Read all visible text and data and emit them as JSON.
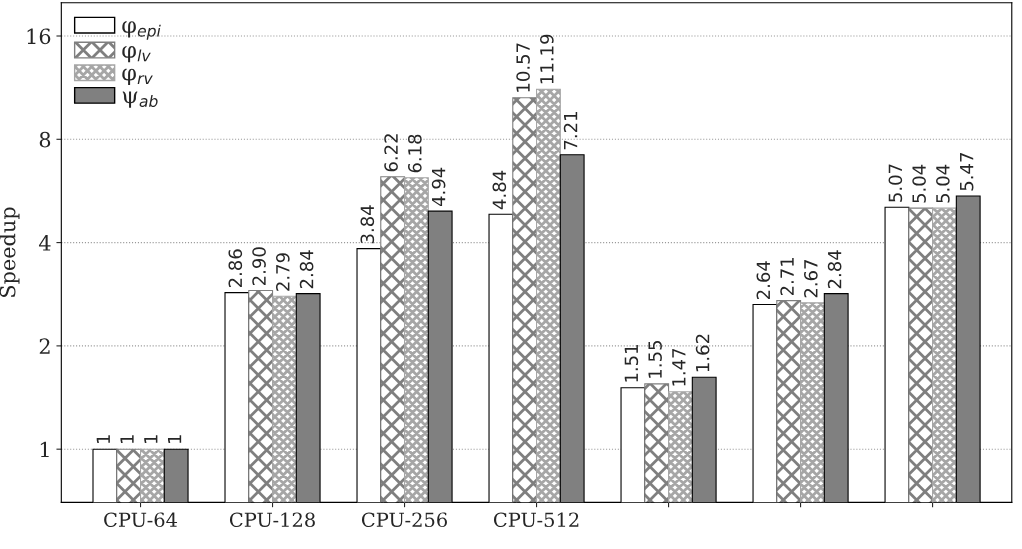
{
  "chart_data": {
    "type": "bar",
    "ylabel": "Speedup",
    "categories": [
      "CPU-64",
      "CPU-128",
      "CPU-256",
      "CPU-512",
      null,
      null,
      null
    ],
    "series": [
      {
        "name": "φ$_{epi}$",
        "color": "#ffffff",
        "values": [
          1,
          2.86,
          3.84,
          4.84,
          1.51,
          2.64,
          5.07
        ],
        "value_labels": [
          "1",
          "2.86",
          "3.84",
          "4.84",
          "1.51",
          "2.64",
          "5.07"
        ]
      },
      {
        "name": "φ$_{lv}$",
        "color": "#7f7f7f",
        "values": [
          1,
          2.9,
          6.22,
          10.57,
          1.55,
          2.71,
          5.04
        ],
        "value_labels": [
          "1",
          "2.90",
          "6.22",
          "10.57",
          "1.55",
          "2.71",
          "5.04"
        ]
      },
      {
        "name": "φ$_{rv}$",
        "color": "#a6a6a6",
        "values": [
          1,
          2.79,
          6.18,
          11.19,
          1.47,
          2.67,
          5.04
        ],
        "value_labels": [
          "1",
          "2.79",
          "6.18",
          "11.19",
          "1.47",
          "2.67",
          "5.04"
        ]
      },
      {
        "name": "ψ$_{ab}$",
        "color": "#808080",
        "values": [
          1,
          2.84,
          4.94,
          7.21,
          1.62,
          2.84,
          5.47
        ],
        "value_labels": [
          "1",
          "2.84",
          "4.94",
          "7.21",
          "1.62",
          "2.84",
          "5.47"
        ]
      }
    ],
    "log": "y",
    "ylim": [
      0.7,
      20
    ],
    "yticks": [
      1,
      2,
      4,
      8,
      16
    ],
    "grid": "y",
    "legend": "top left"
  }
}
